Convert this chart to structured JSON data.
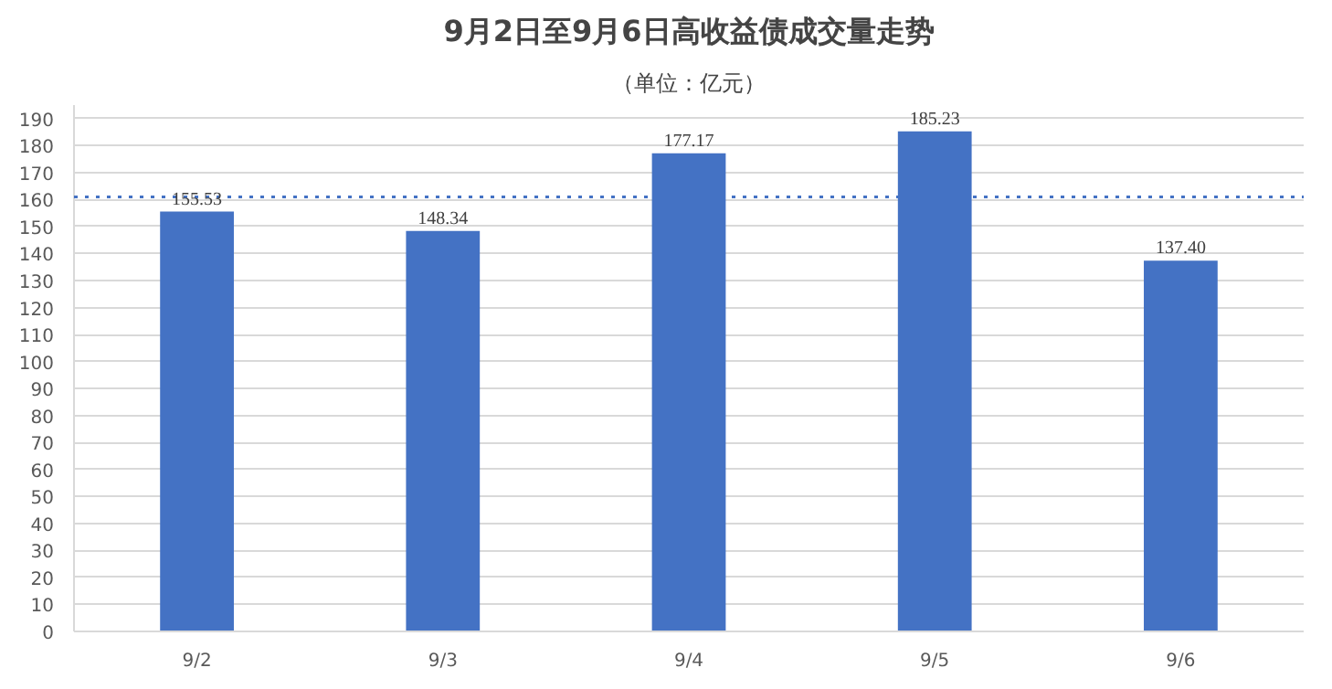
{
  "chart_data": {
    "type": "bar",
    "title": "9月2日至9月6日高收益债成交量走势",
    "subtitle": "（单位：亿元）",
    "categories": [
      "9/2",
      "9/3",
      "9/4",
      "9/5",
      "9/6"
    ],
    "values": [
      155.53,
      148.34,
      177.17,
      185.23,
      137.4
    ],
    "value_labels": [
      "155.53",
      "148.34",
      "177.17",
      "185.23",
      "137.40"
    ],
    "color": "#4472c4",
    "ylim": [
      0,
      195
    ],
    "yticks": [
      0,
      10,
      20,
      30,
      40,
      50,
      60,
      70,
      80,
      90,
      100,
      110,
      120,
      130,
      140,
      150,
      160,
      170,
      180,
      190
    ],
    "ref_lines": [
      {
        "axis": "y",
        "value": 161,
        "color": "#4472c4",
        "line_style": "dotted"
      }
    ],
    "grid": "y"
  }
}
